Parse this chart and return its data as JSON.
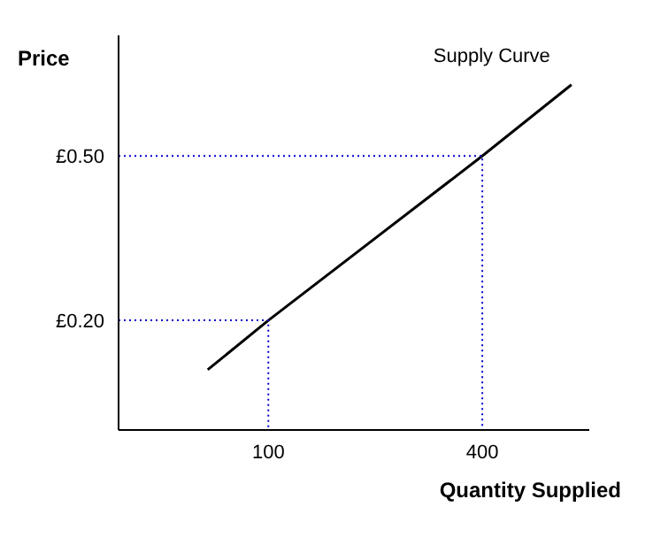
{
  "chart_data": {
    "type": "line",
    "xlabel": "Quantity Supplied",
    "ylabel": "Price",
    "xlim": [
      -110,
      550
    ],
    "ylim": [
      0,
      0.72
    ],
    "xticks": [
      100,
      400
    ],
    "yticks": [
      {
        "value": 0.2,
        "label": "£0.20"
      },
      {
        "value": 0.5,
        "label": "£0.50"
      }
    ],
    "grid": false,
    "legend": false,
    "marker": "none",
    "series": [
      {
        "name": "Supply Curve",
        "color": "#000000",
        "line_style": "solid",
        "x": [
          15,
          100,
          400,
          525
        ],
        "values": [
          0.11,
          0.2,
          0.5,
          0.63
        ]
      },
      {
        "color": "#0000cc",
        "line_style": "dotted",
        "x": [
          -110,
          100,
          100
        ],
        "values": [
          0.2,
          0.2,
          0
        ]
      },
      {
        "color": "#0000cc",
        "line_style": "dotted",
        "x": [
          -110,
          400,
          400
        ],
        "values": [
          0.5,
          0.5,
          0
        ]
      }
    ]
  }
}
